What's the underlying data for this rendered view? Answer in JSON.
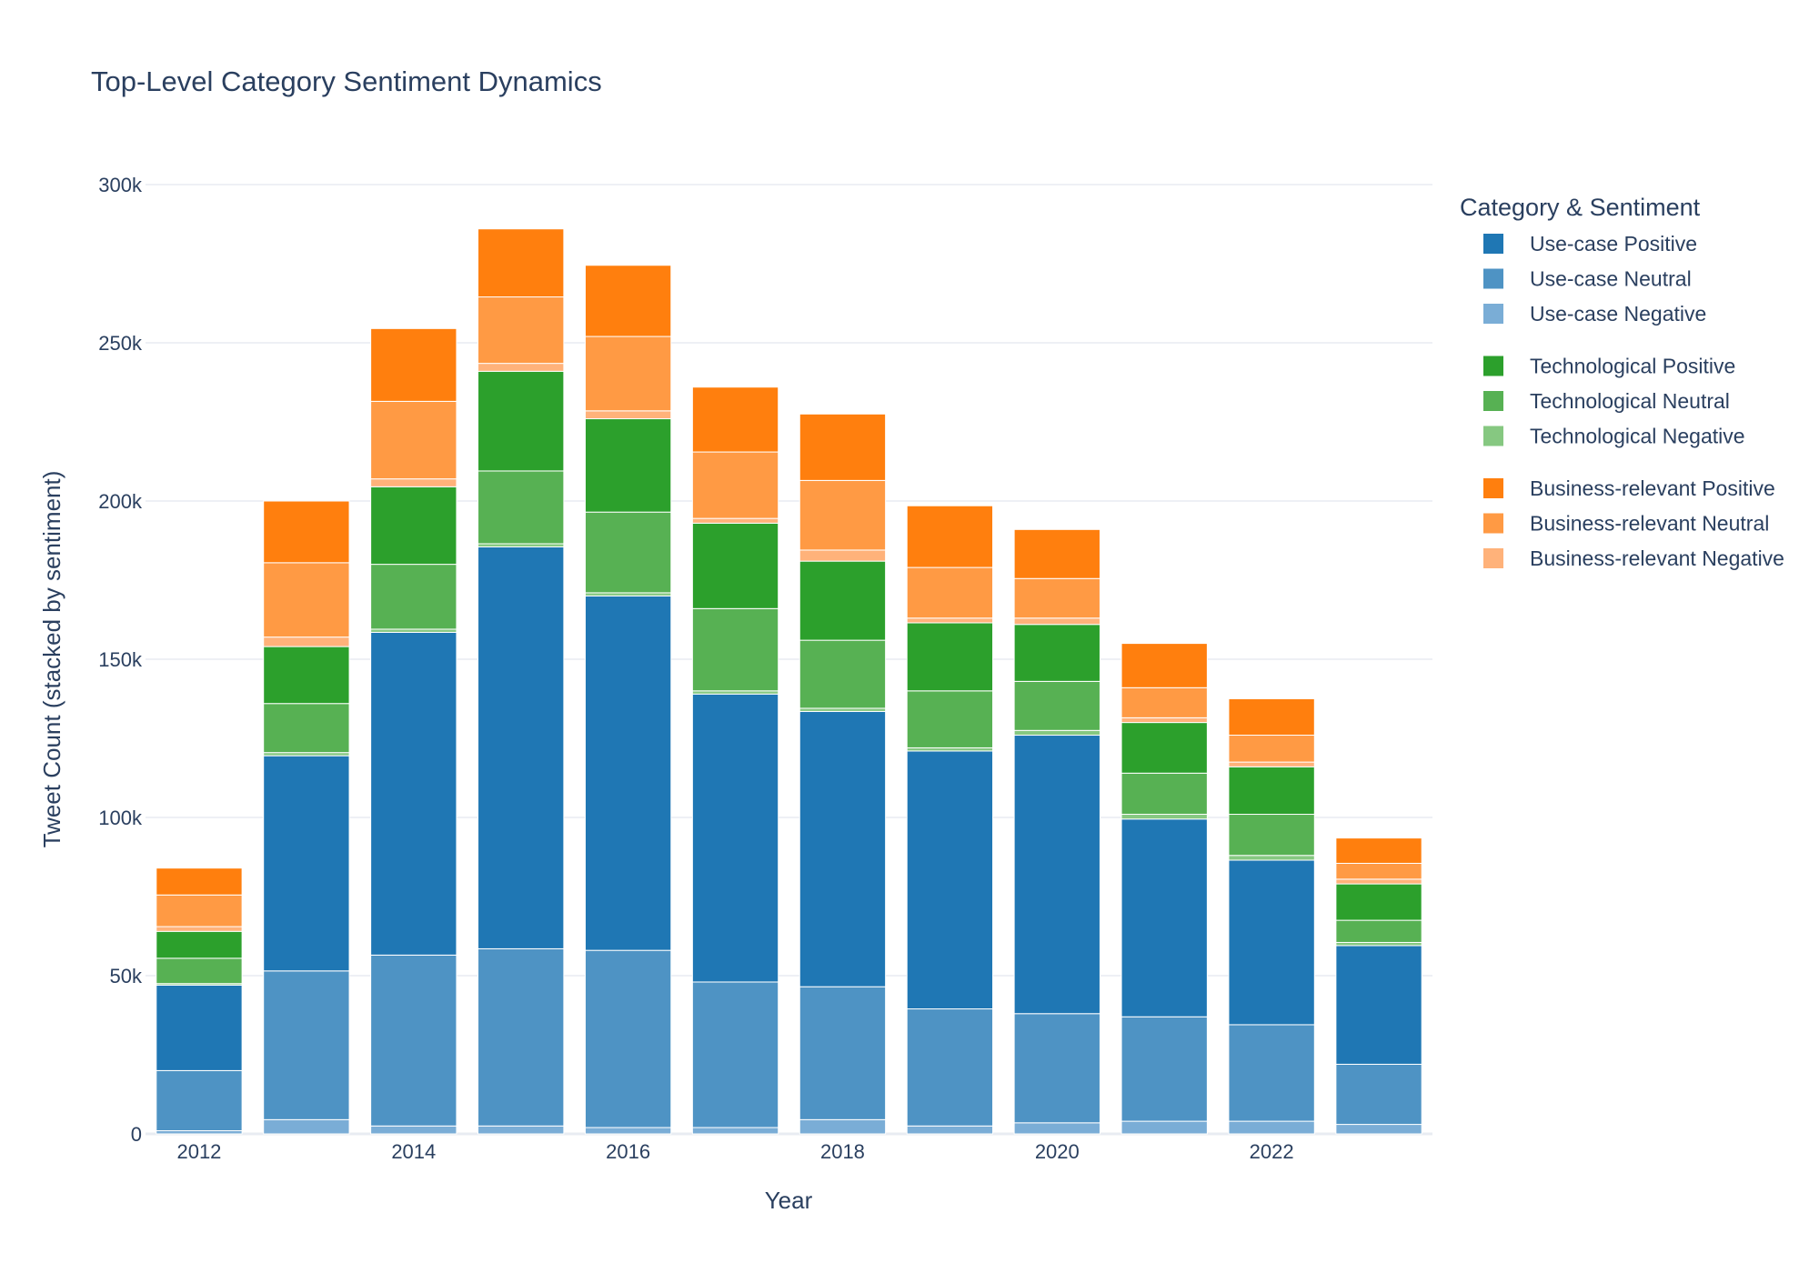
{
  "chart_data": {
    "type": "bar",
    "stacked": true,
    "title": "Top-Level Category Sentiment Dynamics",
    "xlabel": "Year",
    "ylabel": "Tweet Count (stacked by sentiment)",
    "x": [
      2012,
      2013,
      2014,
      2015,
      2016,
      2017,
      2018,
      2019,
      2020,
      2021,
      2022,
      2023
    ],
    "x_tick_labels": [
      "2012",
      "2014",
      "2016",
      "2018",
      "2020",
      "2022"
    ],
    "x_tick_values": [
      2012,
      2014,
      2016,
      2018,
      2020,
      2022
    ],
    "ylim": [
      0,
      310000
    ],
    "y_ticks": [
      0,
      50000,
      100000,
      150000,
      200000,
      250000,
      300000
    ],
    "y_tick_labels": [
      "0",
      "50k",
      "100k",
      "150k",
      "200k",
      "250k",
      "300k"
    ],
    "grid": true,
    "legend_title": "Category & Sentiment",
    "legend_position": "right",
    "series": [
      {
        "name": "Use-case Negative",
        "color": "#7aadd6",
        "values": [
          1000,
          4500,
          2500,
          2500,
          2000,
          2000,
          4500,
          2500,
          3500,
          4000,
          4000,
          3000
        ]
      },
      {
        "name": "Use-case Neutral",
        "color": "#4e93c4",
        "values": [
          19000,
          47000,
          54000,
          56000,
          56000,
          46000,
          42000,
          37000,
          34500,
          33000,
          30500,
          19000
        ]
      },
      {
        "name": "Use-case Positive",
        "color": "#1f77b4",
        "values": [
          27000,
          68000,
          102000,
          127000,
          112000,
          91000,
          87000,
          81500,
          88000,
          62500,
          52000,
          37500
        ]
      },
      {
        "name": "Technological Negative",
        "color": "#86c881",
        "values": [
          500,
          1000,
          1000,
          1000,
          1000,
          1000,
          1000,
          1000,
          1500,
          1500,
          1500,
          1000
        ]
      },
      {
        "name": "Technological Neutral",
        "color": "#57b153",
        "values": [
          8000,
          15500,
          20500,
          23000,
          25500,
          26000,
          21500,
          18000,
          15500,
          13000,
          13000,
          7000
        ]
      },
      {
        "name": "Technological Positive",
        "color": "#2ca02c",
        "values": [
          8500,
          18000,
          24500,
          31500,
          29500,
          27000,
          25000,
          21500,
          18000,
          16000,
          15000,
          11500
        ]
      },
      {
        "name": "Business-relevant Negative",
        "color": "#ffb27a",
        "values": [
          1500,
          3000,
          2500,
          2500,
          2500,
          1500,
          3500,
          1500,
          2000,
          1500,
          1500,
          1500
        ]
      },
      {
        "name": "Business-relevant Neutral",
        "color": "#ff9a44",
        "values": [
          10000,
          23500,
          24500,
          21000,
          23500,
          21000,
          22000,
          16000,
          12500,
          9500,
          8500,
          5000
        ]
      },
      {
        "name": "Business-relevant Positive",
        "color": "#ff7f0e",
        "values": [
          8500,
          19500,
          23000,
          21500,
          22500,
          20500,
          21000,
          19500,
          15500,
          14000,
          11500,
          8000
        ]
      }
    ],
    "legend_groups": [
      {
        "items": [
          {
            "label": "Use-case Positive",
            "color": "#1f77b4"
          },
          {
            "label": "Use-case Neutral",
            "color": "#4e93c4"
          },
          {
            "label": "Use-case Negative",
            "color": "#7aadd6"
          }
        ]
      },
      {
        "items": [
          {
            "label": "Technological Positive",
            "color": "#2ca02c"
          },
          {
            "label": "Technological Neutral",
            "color": "#57b153"
          },
          {
            "label": "Technological Negative",
            "color": "#86c881"
          }
        ]
      },
      {
        "items": [
          {
            "label": "Business-relevant Positive",
            "color": "#ff7f0e"
          },
          {
            "label": "Business-relevant Neutral",
            "color": "#ff9a44"
          },
          {
            "label": "Business-relevant Negative",
            "color": "#ffb27a"
          }
        ]
      }
    ]
  }
}
